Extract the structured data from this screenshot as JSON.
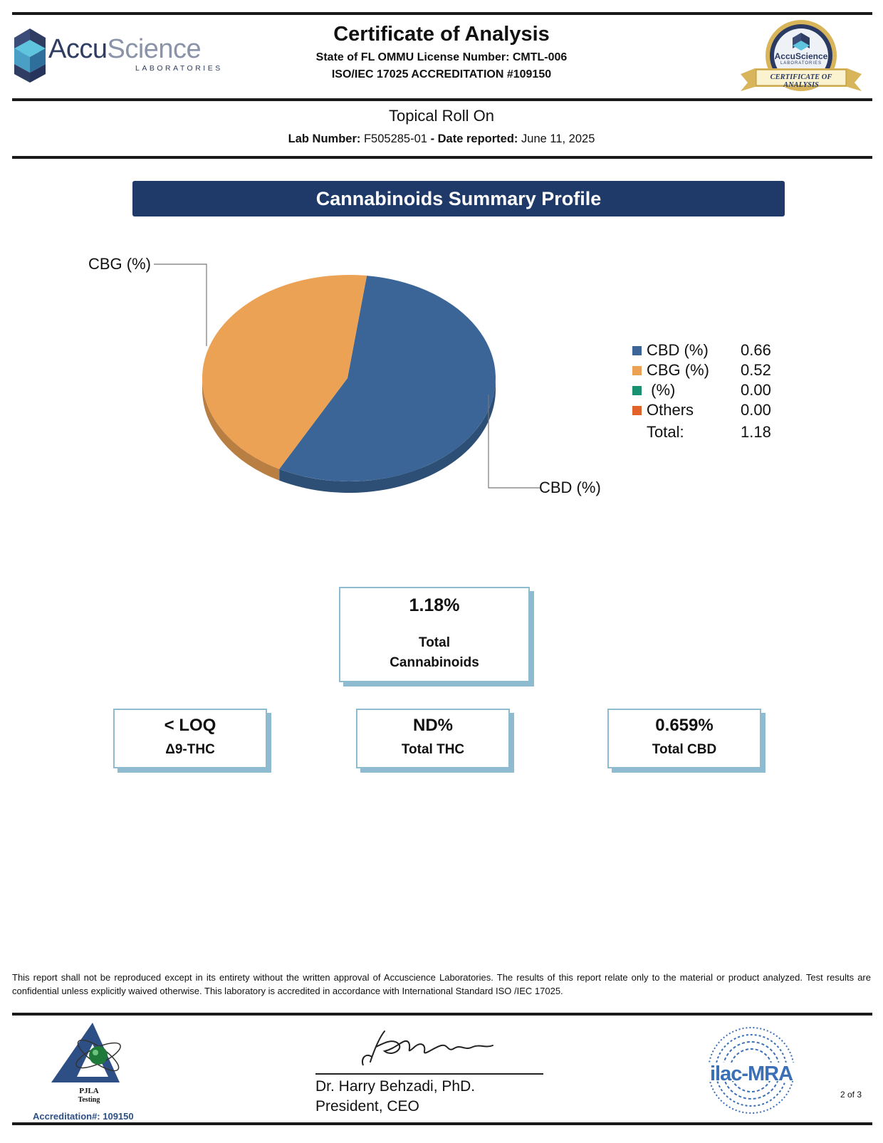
{
  "header": {
    "logo_name_part1": "Accu",
    "logo_name_part2": "Science",
    "logo_sub": "LABORATORIES",
    "title": "Certificate of Analysis",
    "license": "State of FL OMMU License Number: CMTL-006",
    "accreditation": "ISO/IEC 17025 ACCREDITATION #109150",
    "seal_name": "AccuScience",
    "seal_sub": "LABORATORIES",
    "seal_ribbon": "CERTIFICATE OF ANALYSIS"
  },
  "product": {
    "name": "Topical Roll On",
    "lab_number_label": "Lab Number:",
    "lab_number": "F505285-01",
    "date_label": "- Date reported:",
    "date": "June 11, 2025"
  },
  "section_title": "Cannabinoids Summary Profile",
  "chart_data": {
    "type": "pie",
    "slices": [
      {
        "label": "CBD (%)",
        "value": 0.66,
        "color": "#3a6596"
      },
      {
        "label": "CBG (%)",
        "value": 0.52,
        "color": "#eca254"
      },
      {
        "label": " (%)",
        "value": 0.0,
        "color": "#17916f"
      },
      {
        "label": "Others",
        "value": 0.0,
        "color": "#e0642a"
      }
    ],
    "legend": [
      {
        "label": "CBD (%)",
        "value": "0.66",
        "color": "#3a6596"
      },
      {
        "label": "CBG (%)",
        "value": "0.52",
        "color": "#eca254"
      },
      {
        "label": " (%)",
        "value": "0.00",
        "color": "#17916f"
      },
      {
        "label": "Others",
        "value": "0.00",
        "color": "#e0642a"
      }
    ],
    "total_label": "Total:",
    "total_value": "1.18",
    "callouts": {
      "top": "CBG (%)",
      "bottom": "CBD (%)"
    },
    "legend_position": "right"
  },
  "summary": {
    "total_cannabinoids_value": "1.18%",
    "total_cannabinoids_line1": "Total",
    "total_cannabinoids_line2": "Cannabinoids",
    "d9_value": "< LOQ",
    "d9_label": "Δ9-THC",
    "thc_value": "ND%",
    "thc_label": "Total THC",
    "cbd_value": "0.659%",
    "cbd_label": "Total CBD"
  },
  "disclaimer": "This report shall not be reproduced except in its entirety without the written approval of Accuscience Laboratories. The results of this report relate only to the material or product analyzed. Test results are confidential unless explicitly waived otherwise. This laboratory is accredited in accordance with International Standard ISO /IEC 17025.",
  "footer": {
    "pjla_name": "PJLA",
    "pjla_sub": "Testing",
    "pjla_accreditation": "Accreditation#:  109150",
    "signer_name": "Dr. Harry Behzadi, PhD.",
    "signer_title": "President, CEO",
    "ilac": "ilac-MRA",
    "page": "2 of 3"
  }
}
